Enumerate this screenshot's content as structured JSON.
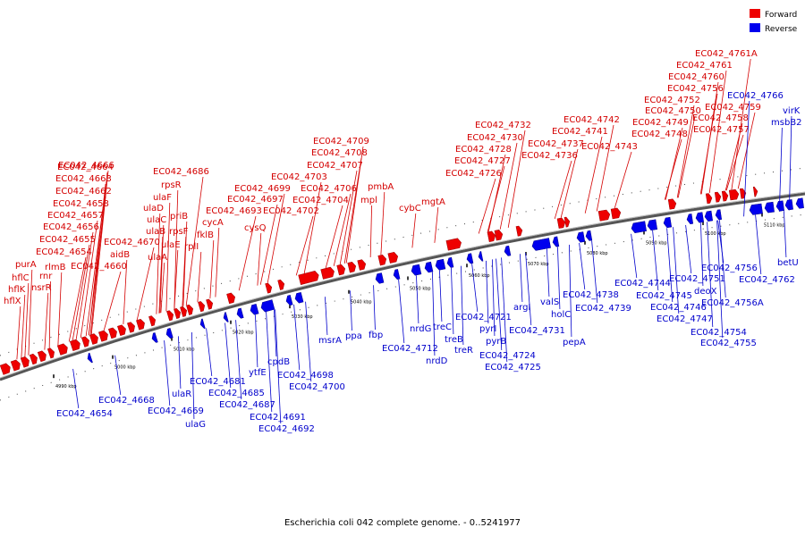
{
  "title": "Escherichia coli 042 complete genome. - 0..5241977",
  "legend": [
    {
      "label": "Forward",
      "color": "#ee0000"
    },
    {
      "label": "Reverse",
      "color": "#0000ee"
    }
  ],
  "colors": {
    "forward": "#ee0000",
    "reverse": "#0000ee",
    "forward_text": "#d40000",
    "reverse_text": "#0000cc",
    "backbone": "#777777"
  },
  "ticks": [
    "4990 kbp",
    "5000 kbp",
    "5010 kbp",
    "5020 kbp",
    "5030 kbp",
    "5040 kbp",
    "5050 kbp",
    "5060 kbp",
    "5070 kbp",
    "5080 kbp",
    "5090 kbp",
    "5100 kbp",
    "5110 kbp"
  ],
  "forward_labels": [
    "hflX",
    "hflK",
    "hflC",
    "purA",
    "rnr",
    "nsrR",
    "rlmB",
    "EC042_4654",
    "EC042_4655",
    "EC042_4656",
    "EC042_4657",
    "EC042_4658",
    "EC042_4660",
    "EC042_4662",
    "EC042_4663",
    "EC042_4664",
    "EC042_4666",
    "aidB",
    "EC042_4670",
    "ulaA",
    "ulaE",
    "ulaB",
    "ulaC",
    "ulaD",
    "ulaF",
    "rpsR",
    "priB",
    "rpsF",
    "rplI",
    "fklB",
    "cycA",
    "EC042_4686",
    "EC042_4693",
    "cysQ",
    "EC042_4697",
    "EC042_4699",
    "EC042_4702",
    "EC042_4703",
    "EC042_4704",
    "EC042_4706",
    "EC042_4707",
    "EC042_4708",
    "EC042_4709",
    "mpl",
    "pmbA",
    "cybC",
    "mgtA",
    "EC042_4726",
    "EC042_4727",
    "EC042_4728",
    "EC042_4730",
    "EC042_4732",
    "EC042_4736",
    "EC042_4737",
    "EC042_4741",
    "EC042_4742",
    "EC042_4743",
    "EC042_4748",
    "EC042_4749",
    "EC042_4750",
    "EC042_4752",
    "EC042_4756",
    "EC042_4757",
    "EC042_4758",
    "EC042_4759",
    "EC042_4760",
    "EC042_4761",
    "EC042_4761A"
  ],
  "reverse_labels": [
    "EC042_4654",
    "EC042_4668",
    "EC042_4669",
    "ulaR",
    "ulaG",
    "EC042_4681",
    "EC042_4685",
    "EC042_4687",
    "ytfE",
    "EC042_4691",
    "EC042_4692",
    "cpdB",
    "EC042_4698",
    "EC042_4700",
    "msrA",
    "ppa",
    "fbp",
    "EC042_4712",
    "nrdG",
    "nrdD",
    "treC",
    "treB",
    "treR",
    "EC042_4721",
    "pyrI",
    "pyrB",
    "EC042_4724",
    "EC042_4725",
    "argI",
    "EC042_4731",
    "valS",
    "holC",
    "pepA",
    "EC042_4738",
    "EC042_4739",
    "EC042_4744",
    "EC042_4745",
    "EC042_4746",
    "EC042_4747",
    "EC042_4751",
    "deoX",
    "EC042_4754",
    "EC042_4755",
    "EC042_4756",
    "EC042_4756A",
    "EC042_4762",
    "betU",
    "EC042_4766",
    "virK",
    "msbB2"
  ]
}
